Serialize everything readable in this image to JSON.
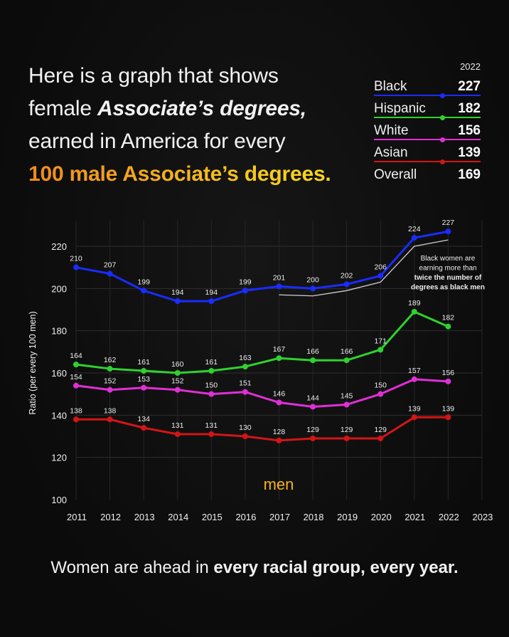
{
  "title": {
    "line1": "Here is a graph that shows",
    "line2_plain": "female ",
    "line2_emph": "Associate’s degrees,",
    "line3": "earned in America for every",
    "line4_highlight": "100 male Associate’s degrees."
  },
  "legend": {
    "year": "2022",
    "rows": [
      {
        "label": "Black",
        "value": "227",
        "color": "#1a2cff"
      },
      {
        "label": "Hispanic",
        "value": "182",
        "color": "#2fd12f"
      },
      {
        "label": "White",
        "value": "156",
        "color": "#e02fd6"
      },
      {
        "label": "Asian",
        "value": "139",
        "color": "#d41515"
      },
      {
        "label": "Overall",
        "value": "169",
        "color": ""
      }
    ]
  },
  "annotation": {
    "line1": "Black women are",
    "line2": "earning more than",
    "line3": "twice the number of",
    "line4": "degrees as black men"
  },
  "baseline_label": "men",
  "footer": {
    "plain": "Women are ahead in ",
    "bold": "every racial group, every year."
  },
  "chart_data": {
    "type": "line",
    "title": "Female Associate's degrees earned in America for every 100 male Associate's degrees",
    "xlabel": "",
    "ylabel": "Ratio (per every 100 men)",
    "x": [
      2011,
      2012,
      2013,
      2014,
      2015,
      2016,
      2017,
      2018,
      2019,
      2020,
      2021,
      2022
    ],
    "x_ticks": [
      "2011",
      "2012",
      "2013",
      "2014",
      "2015",
      "2016",
      "2017",
      "2018",
      "2019",
      "2020",
      "2021",
      "2022",
      "2023"
    ],
    "y_ticks": [
      100,
      120,
      140,
      160,
      180,
      200,
      220
    ],
    "ylim": [
      100,
      228
    ],
    "xlim": [
      2011,
      2023
    ],
    "grid": true,
    "legend_position": "top-right",
    "series": [
      {
        "name": "Black",
        "color": "#1a2cff",
        "values": [
          210,
          207,
          199,
          194,
          194,
          199,
          201,
          200,
          202,
          206,
          224,
          227
        ]
      },
      {
        "name": "Hispanic",
        "color": "#2fd12f",
        "values": [
          164,
          162,
          161,
          160,
          161,
          163,
          167,
          166,
          166,
          171,
          189,
          182
        ]
      },
      {
        "name": "White",
        "color": "#e02fd6",
        "values": [
          154,
          152,
          153,
          152,
          150,
          151,
          146,
          144,
          145,
          150,
          157,
          156
        ]
      },
      {
        "name": "Asian",
        "color": "#d41515",
        "values": [
          138,
          138,
          134,
          131,
          131,
          130,
          128,
          129,
          129,
          129,
          139,
          139
        ]
      },
      {
        "name": "2x Black men reference (unlabeled)",
        "color": "#cfcfcf",
        "x": [
          2017,
          2018,
          2019,
          2020,
          2021,
          2022
        ],
        "values": [
          197,
          196.5,
          199,
          203,
          220,
          223
        ]
      }
    ],
    "baseline": {
      "label": "men",
      "value": 100,
      "style": "dashed",
      "color_gradient": [
        "#f08a1c",
        "#f8e21c"
      ]
    },
    "annotations": [
      {
        "text": "Black women are earning more than twice the number of degrees as black men",
        "x": 2021.3,
        "y": 208
      }
    ]
  }
}
